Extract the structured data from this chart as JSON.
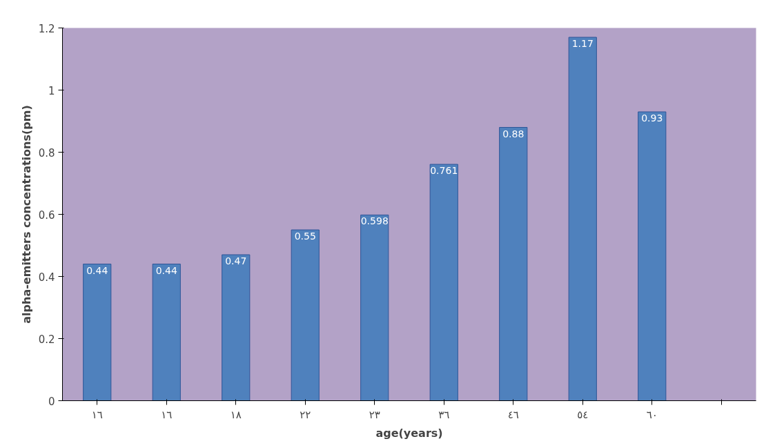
{
  "chart_data": {
    "type": "bar",
    "xlabel": "age(years)",
    "ylabel": "alpha-emitters concentrations(pm)",
    "categories": [
      "١٦",
      "١٦",
      "١٨",
      "٢٢",
      "٢٣",
      "٣٦",
      "٤٦",
      "٥٤",
      "٦٠",
      null
    ],
    "values": [
      0.44,
      0.44,
      0.47,
      0.55,
      0.598,
      0.761,
      0.88,
      1.17,
      0.93,
      null
    ],
    "color": "#4f81bd",
    "ylim": [
      0,
      1.2
    ],
    "yticks": [
      0,
      0.2,
      0.4,
      0.6,
      0.8,
      1,
      1.2
    ],
    "grid": false,
    "data_labels": true
  }
}
